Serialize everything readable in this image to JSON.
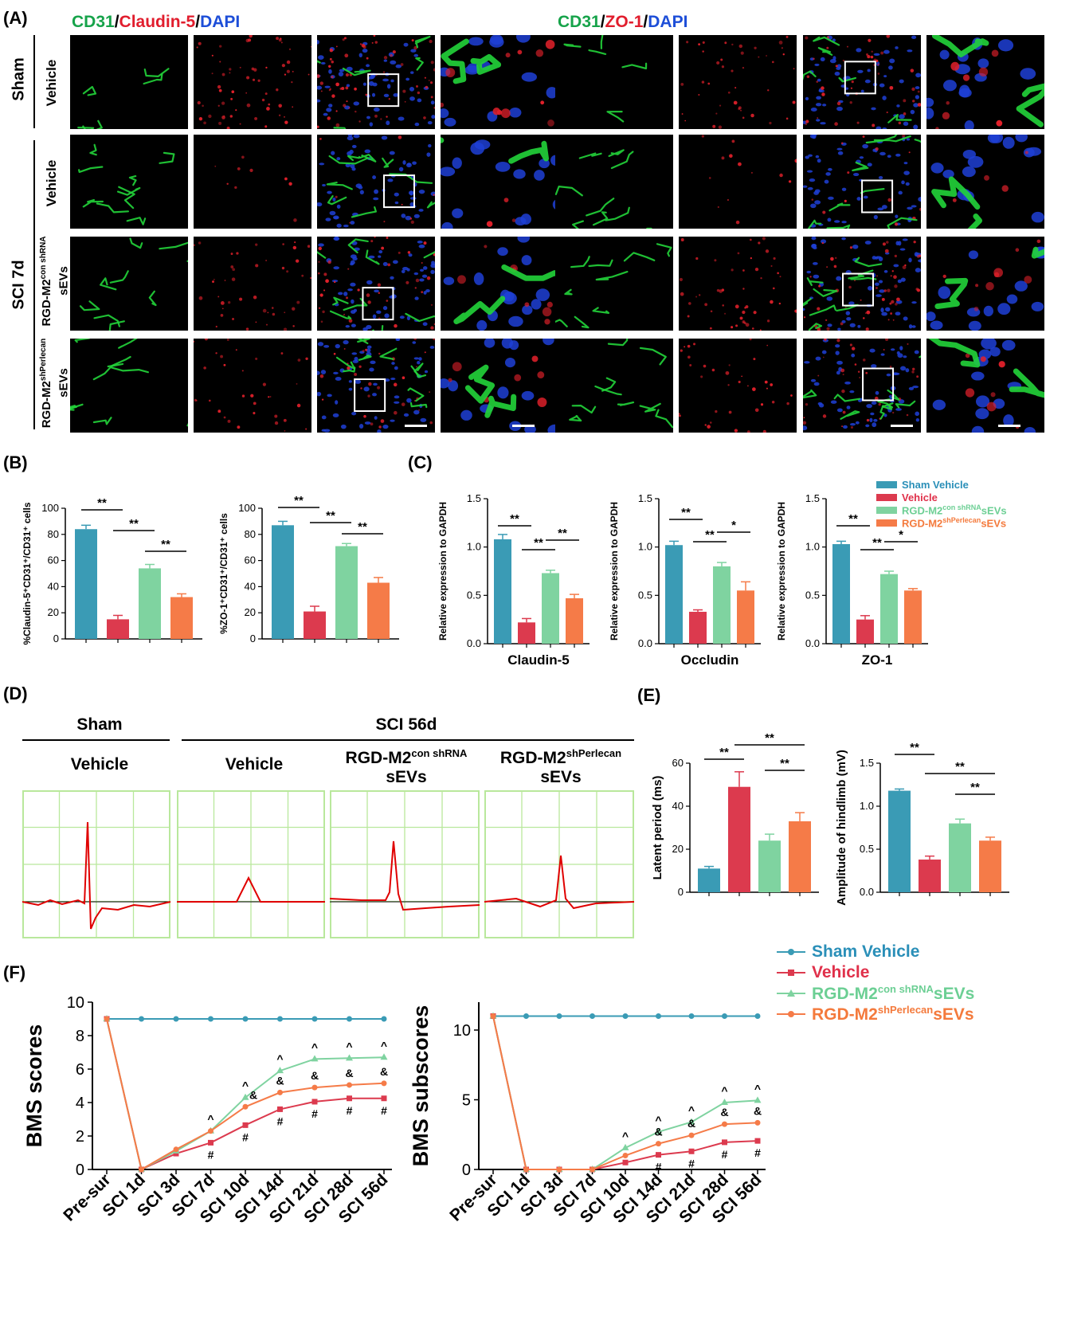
{
  "panelA": {
    "letter": "(A)",
    "left_title": {
      "cd31": "CD31",
      "sep1": "/",
      "marker": "Claudin-5",
      "sep2": "/",
      "dapi": "DAPI"
    },
    "right_title": {
      "cd31": "CD31",
      "sep1": "/",
      "marker": "ZO-1",
      "sep2": "/",
      "dapi": "DAPI"
    },
    "group_sham": "Sham",
    "group_sci": "SCI 7d",
    "rows": [
      {
        "line1": "Vehicle",
        "line2": ""
      },
      {
        "line1": "Vehicle",
        "line2": ""
      },
      {
        "line1": "RGD-M2",
        "sup": "con shRNA",
        "line2": "sEVs"
      },
      {
        "line1": "RGD-M2",
        "sup": "shPerlecan",
        "line2": "sEVs"
      }
    ]
  },
  "panelB": {
    "letter": "(B)",
    "charts": [
      {
        "ylabel": "%Claudin-5⁺CD31⁺/CD31⁺ cells",
        "yticks": [
          "0",
          "20",
          "40",
          "60",
          "80",
          "100"
        ],
        "ymax": 100,
        "values": [
          84,
          15,
          54,
          32
        ],
        "errors": [
          3,
          3,
          3,
          2.5
        ],
        "sig": [
          "**",
          "**",
          "**"
        ]
      },
      {
        "ylabel": "%ZO-1⁺CD31⁺/CD31⁺ cells",
        "yticks": [
          "0",
          "20",
          "40",
          "60",
          "80",
          "100"
        ],
        "ymax": 100,
        "values": [
          87,
          21,
          71,
          43
        ],
        "errors": [
          3,
          4,
          2,
          4
        ],
        "sig": [
          "**",
          "**",
          "**"
        ]
      }
    ]
  },
  "panelC": {
    "letter": "(C)",
    "ylabel": "Relative expression to GAPDH",
    "yticks": [
      "0.0",
      "0.5",
      "1.0",
      "1.5"
    ],
    "charts": [
      {
        "xlabel": "Claudin-5",
        "values": [
          1.08,
          0.22,
          0.73,
          0.47
        ],
        "errors": [
          0.05,
          0.04,
          0.03,
          0.04
        ],
        "sig": [
          "**",
          "**",
          "**"
        ]
      },
      {
        "xlabel": "Occludin",
        "values": [
          1.02,
          0.33,
          0.8,
          0.55
        ],
        "errors": [
          0.04,
          0.02,
          0.04,
          0.09
        ],
        "sig": [
          "**",
          "**",
          "*"
        ]
      },
      {
        "xlabel": "ZO-1",
        "values": [
          1.03,
          0.25,
          0.72,
          0.55
        ],
        "errors": [
          0.03,
          0.04,
          0.03,
          0.02
        ],
        "sig": [
          "**",
          "**",
          "*"
        ]
      }
    ],
    "legend": [
      {
        "label": "Sham Vehicle",
        "sup": "",
        "suffix": ""
      },
      {
        "label": "Vehicle",
        "sup": "",
        "suffix": ""
      },
      {
        "label": "RGD-M2",
        "sup": "con shRNA",
        "suffix": "sEVs"
      },
      {
        "label": "RGD-M2",
        "sup": "shPerlecan",
        "suffix": "sEVs"
      }
    ]
  },
  "panelD": {
    "letter": "(D)",
    "sham": "Sham",
    "sci": "SCI 56d",
    "cols": [
      {
        "line1": "Vehicle",
        "sup": "",
        "line2": ""
      },
      {
        "line1": "Vehicle",
        "sup": "",
        "line2": ""
      },
      {
        "line1": "RGD-M2",
        "sup": "con shRNA",
        "line2": "sEVs"
      },
      {
        "line1": "RGD-M2",
        "sup": "shPerlecan",
        "line2": "sEVs"
      }
    ]
  },
  "panelE": {
    "letter": "(E)",
    "charts": [
      {
        "ylabel": "Latent period (ms)",
        "yticks": [
          "0",
          "20",
          "40",
          "60"
        ],
        "ymax": 60,
        "values": [
          11,
          49,
          24,
          33
        ],
        "errors": [
          1,
          7,
          3,
          4
        ],
        "sig": [
          "**",
          "**",
          "**"
        ]
      },
      {
        "ylabel": "Amplitude of hindlimb (mV)",
        "yticks": [
          "0.0",
          "0.5",
          "1.0",
          "1.5"
        ],
        "ymax": 1.5,
        "values": [
          1.18,
          0.38,
          0.8,
          0.6
        ],
        "errors": [
          0.02,
          0.04,
          0.05,
          0.04
        ],
        "sig": [
          "**",
          "**",
          "**"
        ]
      }
    ]
  },
  "panelF": {
    "letter": "(F)",
    "legend": [
      {
        "label": "Sham Vehicle",
        "sup": "",
        "suffix": ""
      },
      {
        "label": "Vehicle",
        "sup": "",
        "suffix": ""
      },
      {
        "label": "RGD-M2",
        "sup": "con shRNA",
        "suffix": "sEVs"
      },
      {
        "label": "RGD-M2",
        "sup": "shPerlecan",
        "suffix": "sEVs"
      }
    ]
  },
  "chart_data": [
    {
      "type": "line",
      "ylabel": "BMS scores",
      "ylim": [
        0,
        10
      ],
      "yticks": [
        "0",
        "2",
        "4",
        "6",
        "8",
        "10"
      ],
      "x": [
        "Pre-sur",
        "SCI 1d",
        "SCI 3d",
        "SCI 7d",
        "SCI 10d",
        "SCI 14d",
        "SCI 21d",
        "SCI 28d",
        "SCI 56d"
      ],
      "series": [
        {
          "name": "Sham Vehicle",
          "values": [
            9,
            9,
            9,
            9,
            9,
            9,
            9,
            9,
            9
          ]
        },
        {
          "name": "Vehicle",
          "values": [
            9,
            0,
            0.95,
            1.6,
            2.65,
            3.6,
            4.05,
            4.25,
            4.25
          ]
        },
        {
          "name": "RGD-M2con shRNA sEVs",
          "values": [
            9,
            0,
            1.1,
            2.3,
            4.3,
            5.9,
            6.6,
            6.65,
            6.7
          ]
        },
        {
          "name": "RGD-M2shPerlecan sEVs",
          "values": [
            9,
            0,
            1.2,
            2.3,
            3.75,
            4.6,
            4.9,
            5.05,
            5.15
          ]
        }
      ],
      "annotations": [
        {
          "x": 3,
          "marks": [
            "^",
            "#"
          ]
        },
        {
          "x": 4,
          "marks": [
            "^",
            "&",
            "#"
          ]
        },
        {
          "x": 5,
          "marks": [
            "^",
            "&",
            "#"
          ]
        },
        {
          "x": 6,
          "marks": [
            "^",
            "&",
            "#"
          ]
        },
        {
          "x": 7,
          "marks": [
            "^",
            "&",
            "#"
          ]
        },
        {
          "x": 8,
          "marks": [
            "^",
            "&",
            "#"
          ]
        }
      ]
    },
    {
      "type": "line",
      "ylabel": "BMS subscores",
      "ylim": [
        0,
        12
      ],
      "yticks": [
        "0",
        "5",
        "10"
      ],
      "x": [
        "Pre-sur",
        "SCI 1d",
        "SCI 3d",
        "SCI 7d",
        "SCI 10d",
        "SCI 14d",
        "SCI 21d",
        "SCI 28d",
        "SCI 56d"
      ],
      "series": [
        {
          "name": "Sham Vehicle",
          "values": [
            11,
            11,
            11,
            11,
            11,
            11,
            11,
            11,
            11
          ]
        },
        {
          "name": "Vehicle",
          "values": [
            11,
            0,
            0,
            0,
            0.5,
            1.05,
            1.3,
            1.95,
            2.05
          ]
        },
        {
          "name": "RGD-M2con shRNA sEVs",
          "values": [
            11,
            0,
            0,
            0,
            1.55,
            2.7,
            3.4,
            4.8,
            4.95
          ]
        },
        {
          "name": "RGD-M2shPerlecan sEVs",
          "values": [
            11,
            0,
            0,
            0,
            1.0,
            1.85,
            2.45,
            3.25,
            3.35
          ]
        }
      ],
      "annotations": [
        {
          "x": 4,
          "marks": [
            "^"
          ]
        },
        {
          "x": 5,
          "marks": [
            "^",
            "&",
            "#"
          ]
        },
        {
          "x": 6,
          "marks": [
            "^",
            "&",
            "#"
          ]
        },
        {
          "x": 7,
          "marks": [
            "^",
            "&",
            "#"
          ]
        },
        {
          "x": 8,
          "marks": [
            "^",
            "&",
            "#"
          ]
        }
      ]
    }
  ],
  "colors": {
    "sham": "#3a9bb5",
    "vehicle": "#dc3a4e",
    "con": "#7fd3a0",
    "perl": "#f57b48",
    "legend_sham": "#2a8fb8",
    "legend_vehicle": "#e0304a",
    "legend_con": "#6ccf94",
    "legend_perl": "#f47a3c",
    "grid": "#b9e89c",
    "trace": "#e00000"
  }
}
